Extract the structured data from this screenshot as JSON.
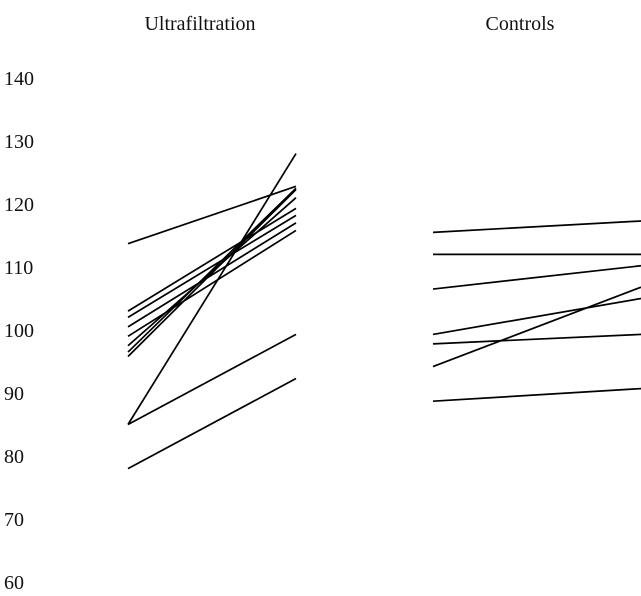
{
  "chart_data": {
    "type": "line",
    "title": "",
    "xlabel": "",
    "ylabel": "",
    "ylim": [
      60,
      140
    ],
    "yticks": [
      140,
      130,
      120,
      110,
      100,
      90,
      80,
      70,
      60
    ],
    "grid": false,
    "legend": "none",
    "line_color": "#000000",
    "panels": [
      {
        "title": "Ultrafiltration",
        "lines": [
          [
            113.7,
            122.8
          ],
          [
            103.0,
            119.3
          ],
          [
            102.0,
            118.2
          ],
          [
            100.5,
            117.0
          ],
          [
            99.0,
            115.8
          ],
          [
            97.5,
            121.0
          ],
          [
            96.5,
            122.5
          ],
          [
            95.8,
            122.3
          ],
          [
            85.0,
            128.0
          ],
          [
            85.0,
            99.3
          ],
          [
            78.0,
            92.3
          ]
        ]
      },
      {
        "title": "Controls",
        "lines": [
          [
            115.5,
            117.3
          ],
          [
            112.0,
            112.0
          ],
          [
            106.5,
            110.2
          ],
          [
            99.3,
            105.0
          ],
          [
            97.8,
            99.3
          ],
          [
            94.2,
            106.8
          ],
          [
            88.7,
            90.7
          ]
        ]
      }
    ]
  }
}
